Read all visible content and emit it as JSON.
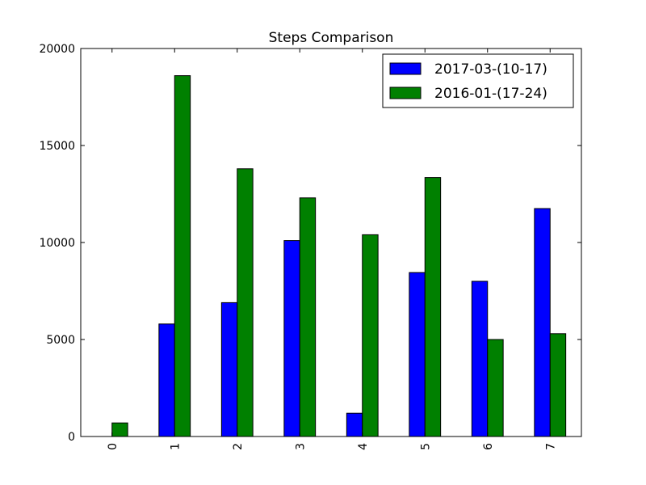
{
  "chart_data": {
    "type": "bar",
    "title": "Steps Comparison",
    "xlabel": "",
    "ylabel": "",
    "categories": [
      "0",
      "1",
      "2",
      "3",
      "4",
      "5",
      "6",
      "7"
    ],
    "series": [
      {
        "name": "2017-03-(10-17)",
        "color": "#0000ff",
        "values": [
          0,
          5800,
          6900,
          10100,
          1200,
          8450,
          8000,
          11750
        ]
      },
      {
        "name": "2016-01-(17-24)",
        "color": "#008000",
        "values": [
          700,
          18600,
          13800,
          12300,
          10400,
          13350,
          5000,
          5300
        ]
      }
    ],
    "ylim": [
      0,
      20000
    ],
    "yticks": [
      "0",
      "5000",
      "10000",
      "15000",
      "20000"
    ],
    "legend_position": "top-right",
    "grid": false,
    "xtick_rotation": "vertical"
  }
}
